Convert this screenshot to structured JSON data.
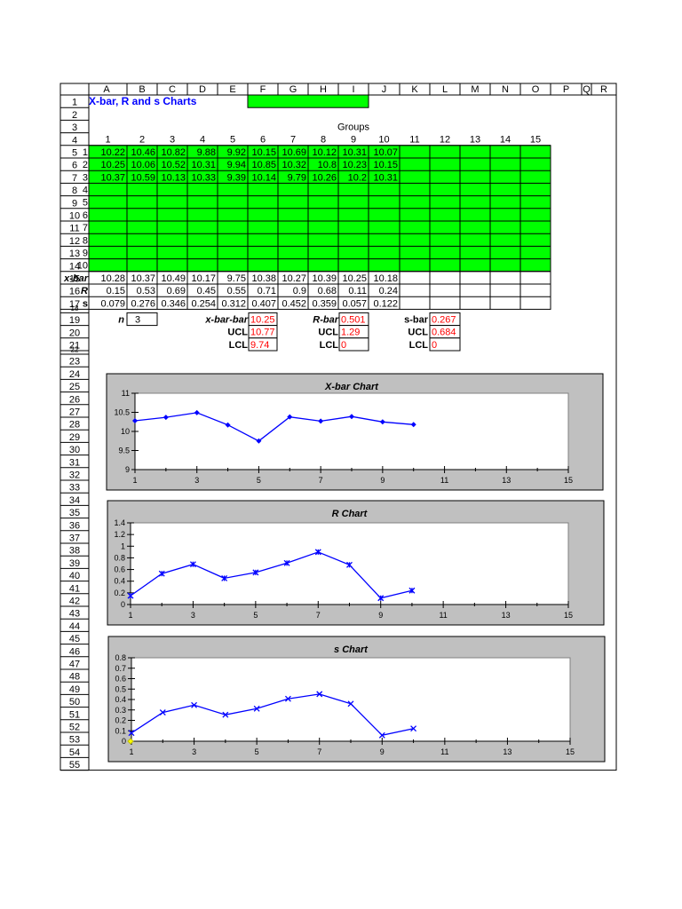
{
  "columns": [
    "A",
    "B",
    "C",
    "D",
    "E",
    "F",
    "G",
    "H",
    "I",
    "J",
    "K",
    "L",
    "M",
    "N",
    "O",
    "P",
    "Q",
    "R"
  ],
  "row_numbers": [
    1,
    2,
    3,
    4,
    5,
    6,
    7,
    8,
    9,
    10,
    11,
    12,
    13,
    14,
    15,
    16,
    17,
    18,
    19,
    20,
    21,
    22,
    23,
    24,
    25,
    26,
    27,
    28,
    29,
    30,
    31,
    32,
    33,
    34,
    35,
    36,
    37,
    38,
    39,
    40,
    41,
    42,
    43,
    44,
    45,
    46,
    47,
    48,
    49,
    50,
    51,
    52,
    53,
    54,
    55
  ],
  "title": "X-bar, R and s Charts",
  "groups_label": "Groups",
  "group_numbers": [
    1,
    2,
    3,
    4,
    5,
    6,
    7,
    8,
    9,
    10,
    11,
    12,
    13,
    14,
    15
  ],
  "obs_labels": [
    1,
    2,
    3,
    4,
    5,
    6,
    7,
    8,
    9,
    10
  ],
  "observations": [
    [
      "10.22",
      "10.46",
      "10.82",
      "9.88",
      "9.92",
      "10.15",
      "10.69",
      "10.12",
      "10.31",
      "10.07"
    ],
    [
      "10.25",
      "10.06",
      "10.52",
      "10.31",
      "9.94",
      "10.85",
      "10.32",
      "10.8",
      "10.23",
      "10.15"
    ],
    [
      "10.37",
      "10.59",
      "10.13",
      "10.33",
      "9.39",
      "10.14",
      "9.79",
      "10.26",
      "10.2",
      "10.31"
    ]
  ],
  "stats": [
    {
      "label": "x-bar",
      "values": [
        "10.28",
        "10.37",
        "10.49",
        "10.17",
        "9.75",
        "10.38",
        "10.27",
        "10.39",
        "10.25",
        "10.18"
      ]
    },
    {
      "label": "R",
      "values": [
        "0.15",
        "0.53",
        "0.69",
        "0.45",
        "0.55",
        "0.71",
        "0.9",
        "0.68",
        "0.11",
        "0.24"
      ]
    },
    {
      "label": "s",
      "values": [
        "0.079",
        "0.276",
        "0.346",
        "0.254",
        "0.312",
        "0.407",
        "0.452",
        "0.359",
        "0.057",
        "0.122"
      ]
    }
  ],
  "n": {
    "label": "n",
    "value": "3"
  },
  "limits": {
    "xbar": {
      "center_label": "x-bar-bar",
      "center": "10.25",
      "ucl_label": "UCL",
      "ucl": "10.77",
      "lcl_label": "LCL",
      "lcl": "9.74"
    },
    "r": {
      "center_label": "R-bar",
      "center": "0.501",
      "ucl_label": "UCL",
      "ucl": "1.29",
      "lcl_label": "LCL",
      "lcl": "0"
    },
    "s": {
      "center_label": "s-bar",
      "center": "0.267",
      "ucl_label": "UCL",
      "ucl": "0.684",
      "lcl_label": "LCL",
      "lcl": "0"
    }
  },
  "colors": {
    "green": "#00ff00",
    "series": "#0000ff",
    "panel": "#c0c0c0",
    "limit_text": "#ff0000",
    "title_text": "#0000ff"
  },
  "chart_data": [
    {
      "type": "line",
      "title": "X-bar Chart",
      "x": [
        1,
        2,
        3,
        4,
        5,
        6,
        7,
        8,
        9,
        10
      ],
      "values": [
        10.28,
        10.37,
        10.49,
        10.17,
        9.75,
        10.38,
        10.27,
        10.39,
        10.25,
        10.18
      ],
      "xlim": [
        1,
        15
      ],
      "ylim": [
        9,
        11
      ],
      "xticks": [
        1,
        3,
        5,
        7,
        9,
        11,
        13,
        15
      ],
      "yticks": [
        "9",
        "9.5",
        "10",
        "10.5",
        "11"
      ],
      "marker": "diamond",
      "grid": false
    },
    {
      "type": "line",
      "title": "R Chart",
      "x": [
        1,
        2,
        3,
        4,
        5,
        6,
        7,
        8,
        9,
        10
      ],
      "values": [
        0.15,
        0.53,
        0.69,
        0.45,
        0.55,
        0.71,
        0.9,
        0.68,
        0.11,
        0.24
      ],
      "xlim": [
        1,
        15
      ],
      "ylim": [
        0,
        1.4
      ],
      "xticks": [
        1,
        3,
        5,
        7,
        9,
        11,
        13,
        15
      ],
      "yticks": [
        "0",
        "0.2",
        "0.4",
        "0.6",
        "0.8",
        "1",
        "1.2",
        "1.4"
      ],
      "marker": "star",
      "grid": false
    },
    {
      "type": "line",
      "title": "s Chart",
      "x": [
        1,
        2,
        3,
        4,
        5,
        6,
        7,
        8,
        9,
        10
      ],
      "values": [
        0.079,
        0.276,
        0.346,
        0.254,
        0.312,
        0.407,
        0.452,
        0.359,
        0.057,
        0.122
      ],
      "xlim": [
        1,
        15
      ],
      "ylim": [
        0,
        0.8
      ],
      "xticks": [
        1,
        3,
        5,
        7,
        9,
        11,
        13,
        15
      ],
      "yticks": [
        "0",
        "0.1",
        "0.2",
        "0.3",
        "0.4",
        "0.5",
        "0.6",
        "0.7",
        "0.8"
      ],
      "marker": "x",
      "grid": false
    }
  ]
}
